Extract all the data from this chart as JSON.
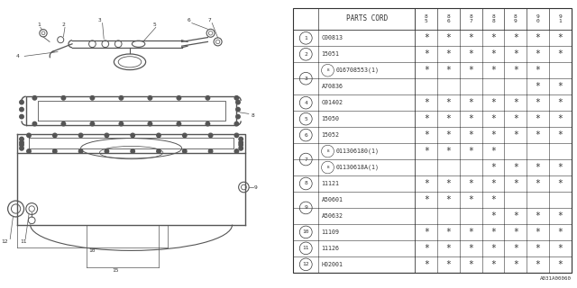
{
  "bg_color": "#ffffff",
  "col_header": "PARTS CORD",
  "year_headers": [
    "8\n5",
    "8\n6",
    "8\n7",
    "8\n8",
    "8\n9",
    "9\n0",
    "9\n1"
  ],
  "rows": [
    {
      "num": "1",
      "part": "C00813",
      "b1": false,
      "b2": false,
      "stars": [
        1,
        1,
        1,
        1,
        1,
        1,
        1
      ],
      "part2": null,
      "stars2": null
    },
    {
      "num": "2",
      "part": "15051",
      "b1": false,
      "b2": false,
      "stars": [
        1,
        1,
        1,
        1,
        1,
        1,
        1
      ],
      "part2": null,
      "stars2": null
    },
    {
      "num": "3",
      "part": "016708553(1)",
      "b1": true,
      "b2": false,
      "stars": [
        1,
        1,
        1,
        1,
        1,
        1,
        0
      ],
      "part2": "A70836",
      "stars2": [
        0,
        0,
        0,
        0,
        0,
        1,
        1
      ]
    },
    {
      "num": "4",
      "part": "G91402",
      "b1": false,
      "b2": false,
      "stars": [
        1,
        1,
        1,
        1,
        1,
        1,
        1
      ],
      "part2": null,
      "stars2": null
    },
    {
      "num": "5",
      "part": "15050",
      "b1": false,
      "b2": false,
      "stars": [
        1,
        1,
        1,
        1,
        1,
        1,
        1
      ],
      "part2": null,
      "stars2": null
    },
    {
      "num": "6",
      "part": "15052",
      "b1": false,
      "b2": false,
      "stars": [
        1,
        1,
        1,
        1,
        1,
        1,
        1
      ],
      "part2": null,
      "stars2": null
    },
    {
      "num": "7",
      "part": "011306180(1)",
      "b1": true,
      "b2": true,
      "stars": [
        1,
        1,
        1,
        1,
        0,
        0,
        0
      ],
      "part2": "01130618A(1)",
      "stars2": [
        0,
        0,
        0,
        1,
        1,
        1,
        1
      ]
    },
    {
      "num": "8",
      "part": "11121",
      "b1": false,
      "b2": false,
      "stars": [
        1,
        1,
        1,
        1,
        1,
        1,
        1
      ],
      "part2": null,
      "stars2": null
    },
    {
      "num": "9",
      "part": "A50601",
      "b1": false,
      "b2": false,
      "stars": [
        1,
        1,
        1,
        1,
        0,
        0,
        0
      ],
      "part2": "A50632",
      "stars2": [
        0,
        0,
        0,
        1,
        1,
        1,
        1
      ]
    },
    {
      "num": "10",
      "part": "11109",
      "b1": false,
      "b2": false,
      "stars": [
        1,
        1,
        1,
        1,
        1,
        1,
        1
      ],
      "part2": null,
      "stars2": null
    },
    {
      "num": "11",
      "part": "11126",
      "b1": false,
      "b2": false,
      "stars": [
        1,
        1,
        1,
        1,
        1,
        1,
        1
      ],
      "part2": null,
      "stars2": null
    },
    {
      "num": "12",
      "part": "H02001",
      "b1": false,
      "b2": false,
      "stars": [
        1,
        1,
        1,
        1,
        1,
        1,
        1
      ],
      "part2": null,
      "stars2": null
    }
  ],
  "diagram_label": "A031A00060",
  "lc": "#999999",
  "lc2": "#555555",
  "tc": "#333333"
}
